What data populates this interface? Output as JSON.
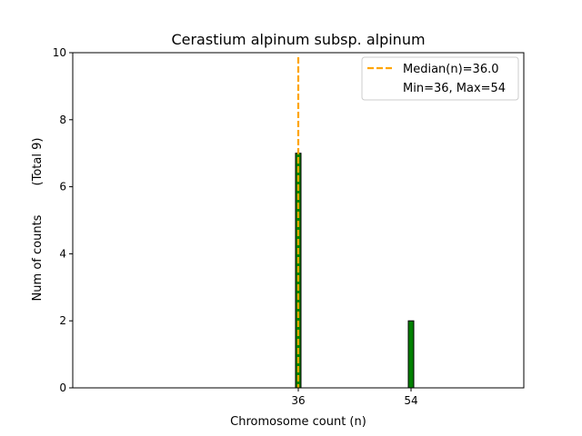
{
  "chart_data": {
    "type": "bar",
    "title": "Cerastium alpinum subsp. alpinum",
    "xlabel": "Chromosome count (n)",
    "ylabel": "Num of counts",
    "ylabel_note": "(Total 9)",
    "xlim": [
      0,
      72
    ],
    "ylim": [
      0,
      10
    ],
    "x_ticks": [
      36,
      54
    ],
    "y_ticks": [
      0,
      2,
      4,
      6,
      8,
      10
    ],
    "grid": false,
    "legend_position": "top-right",
    "bars": [
      {
        "x": 36,
        "value": 7
      },
      {
        "x": 54,
        "value": 2
      }
    ],
    "median": 36.0,
    "legend": {
      "median_label": "Median(n)=36.0",
      "range_label": "Min=36, Max=54"
    },
    "colors": {
      "bar_fill": "#008000",
      "bar_edge": "#000000",
      "median_line": "#FFA500"
    }
  }
}
